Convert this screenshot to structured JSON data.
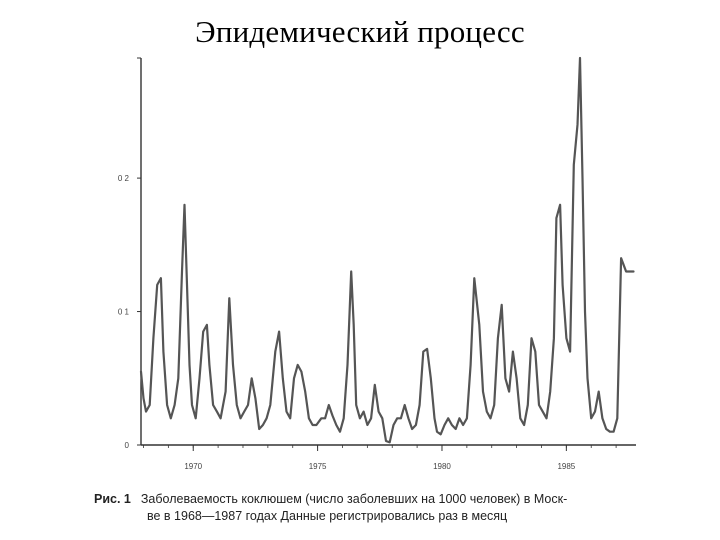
{
  "slide": {
    "title": "Эпидемический процесс"
  },
  "caption": {
    "label": "Рис. 1",
    "line1": "Заболеваемость коклюшем (число заболевших на 1000 человек) в Моск-",
    "line2": "ве в 1968—1987 годах  Данные регистрировались раз в месяц"
  },
  "chart_data": {
    "type": "line",
    "title": "",
    "xlabel": "",
    "ylabel": "",
    "x_ticks": [
      "1970",
      "1975",
      "1980",
      "1985"
    ],
    "x_tick_values": [
      1970,
      1975,
      1980,
      1985
    ],
    "y_ticks": [
      "0",
      "0 1",
      "0 2"
    ],
    "y_tick_values": [
      0,
      0.1,
      0.2
    ],
    "xlim": [
      1967.9,
      1987.8
    ],
    "ylim": [
      0,
      0.29
    ],
    "grid": false,
    "legend": "none",
    "line_color": "#555555",
    "series": [
      {
        "x": [
          1967.9,
          1968.0,
          1968.1,
          1968.25,
          1968.4,
          1968.55,
          1968.7,
          1968.8,
          1968.95,
          1969.1,
          1969.25,
          1969.4,
          1969.55,
          1969.65,
          1969.75,
          1969.85,
          1969.95,
          1970.1,
          1970.25,
          1970.4,
          1970.55,
          1970.65,
          1970.8,
          1970.95,
          1971.1,
          1971.3,
          1971.45,
          1971.6,
          1971.75,
          1971.9,
          1972.05,
          1972.2,
          1972.35,
          1972.5,
          1972.65,
          1972.8,
          1972.95,
          1973.1,
          1973.3,
          1973.45,
          1973.6,
          1973.75,
          1973.9,
          1974.05,
          1974.2,
          1974.35,
          1974.5,
          1974.65,
          1974.8,
          1974.95,
          1975.15,
          1975.3,
          1975.45,
          1975.6,
          1975.75,
          1975.9,
          1976.05,
          1976.2,
          1976.35,
          1976.45,
          1976.55,
          1976.7,
          1976.85,
          1977.0,
          1977.15,
          1977.3,
          1977.45,
          1977.6,
          1977.75,
          1977.9,
          1978.05,
          1978.2,
          1978.35,
          1978.5,
          1978.65,
          1978.8,
          1978.95,
          1979.1,
          1979.25,
          1979.4,
          1979.55,
          1979.7,
          1979.8,
          1979.95,
          1980.1,
          1980.25,
          1980.4,
          1980.55,
          1980.7,
          1980.85,
          1981.0,
          1981.15,
          1981.3,
          1981.5,
          1981.65,
          1981.8,
          1981.95,
          1982.1,
          1982.25,
          1982.4,
          1982.55,
          1982.7,
          1982.85,
          1983.0,
          1983.15,
          1983.3,
          1983.45,
          1983.6,
          1983.75,
          1983.9,
          1984.05,
          1984.2,
          1984.35,
          1984.5,
          1984.6,
          1984.75,
          1984.85,
          1985.0,
          1985.15,
          1985.3,
          1985.45,
          1985.55,
          1985.65,
          1985.75,
          1985.85,
          1986.0,
          1986.15,
          1986.3,
          1986.45,
          1986.6,
          1986.75,
          1986.9,
          1987.05,
          1987.2,
          1987.3,
          1987.4,
          1987.55,
          1987.7
        ],
        "values": [
          0.055,
          0.035,
          0.025,
          0.03,
          0.08,
          0.12,
          0.125,
          0.07,
          0.03,
          0.02,
          0.03,
          0.05,
          0.13,
          0.18,
          0.12,
          0.06,
          0.03,
          0.02,
          0.05,
          0.085,
          0.09,
          0.06,
          0.03,
          0.025,
          0.02,
          0.04,
          0.11,
          0.06,
          0.03,
          0.02,
          0.025,
          0.03,
          0.05,
          0.035,
          0.012,
          0.015,
          0.02,
          0.03,
          0.07,
          0.085,
          0.05,
          0.025,
          0.02,
          0.05,
          0.06,
          0.055,
          0.04,
          0.02,
          0.015,
          0.015,
          0.02,
          0.02,
          0.03,
          0.022,
          0.015,
          0.01,
          0.02,
          0.06,
          0.13,
          0.09,
          0.03,
          0.02,
          0.025,
          0.015,
          0.02,
          0.045,
          0.025,
          0.02,
          0.003,
          0.002,
          0.015,
          0.02,
          0.02,
          0.03,
          0.02,
          0.012,
          0.015,
          0.03,
          0.07,
          0.072,
          0.05,
          0.02,
          0.01,
          0.008,
          0.015,
          0.02,
          0.015,
          0.012,
          0.02,
          0.015,
          0.02,
          0.06,
          0.125,
          0.09,
          0.04,
          0.025,
          0.02,
          0.03,
          0.08,
          0.105,
          0.05,
          0.04,
          0.07,
          0.05,
          0.02,
          0.015,
          0.03,
          0.08,
          0.07,
          0.03,
          0.025,
          0.02,
          0.04,
          0.08,
          0.17,
          0.18,
          0.12,
          0.08,
          0.07,
          0.21,
          0.24,
          0.29,
          0.2,
          0.1,
          0.05,
          0.02,
          0.025,
          0.04,
          0.02,
          0.012,
          0.01,
          0.01,
          0.02,
          0.14,
          0.135,
          0.13,
          0.13,
          0.13
        ]
      }
    ]
  }
}
